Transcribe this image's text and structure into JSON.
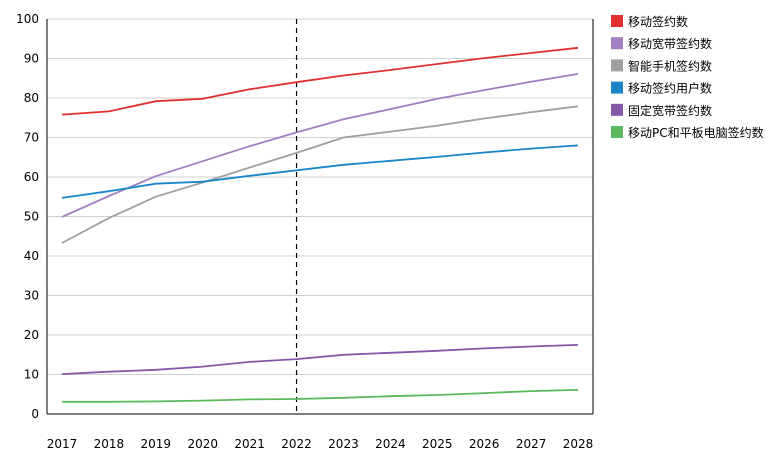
{
  "chart_data": {
    "type": "line",
    "x": [
      "2017",
      "2018",
      "2019",
      "2020",
      "2021",
      "2022",
      "2023",
      "2024",
      "2025",
      "2026",
      "2027",
      "2028"
    ],
    "ylim": [
      0,
      100
    ],
    "yticks": [
      0,
      10,
      20,
      30,
      40,
      50,
      60,
      70,
      80,
      90,
      100
    ],
    "grid": true,
    "legend_position": "right",
    "vertical_marker_at": "2022",
    "series": [
      {
        "name": "移动签约数",
        "color": "#e03030",
        "values": [
          75.8,
          76.6,
          79.2,
          79.8,
          82.2,
          84.0,
          85.7,
          87.1,
          88.6,
          90.1,
          91.4,
          92.7
        ]
      },
      {
        "name": "移动宽带签约数",
        "color": "#a27fc0",
        "values": [
          49.9,
          55.2,
          60.2,
          64.0,
          67.8,
          71.3,
          74.6,
          77.2,
          79.8,
          82.0,
          84.1,
          86.1
        ]
      },
      {
        "name": "智能手机签约数",
        "color": "#a0a0a0",
        "values": [
          43.3,
          49.6,
          55.0,
          58.6,
          62.4,
          66.1,
          70.0,
          71.5,
          73.0,
          74.8,
          76.4,
          77.9
        ]
      },
      {
        "name": "移动签约用户数",
        "color": "#1a86c8",
        "values": [
          54.7,
          56.4,
          58.3,
          58.8,
          60.3,
          61.7,
          63.1,
          64.1,
          65.1,
          66.2,
          67.2,
          68.0
        ]
      },
      {
        "name": "固定宽带签约数",
        "color": "#8757a8",
        "values": [
          10.1,
          10.7,
          11.2,
          12.0,
          13.2,
          13.9,
          15.0,
          15.5,
          16.0,
          16.6,
          17.1,
          17.5
        ]
      },
      {
        "name": "移动PC和平板电脑签约数",
        "color": "#5cb85c",
        "values": [
          3.1,
          3.1,
          3.2,
          3.4,
          3.7,
          3.8,
          4.1,
          4.5,
          4.8,
          5.3,
          5.8,
          6.1
        ]
      }
    ]
  }
}
